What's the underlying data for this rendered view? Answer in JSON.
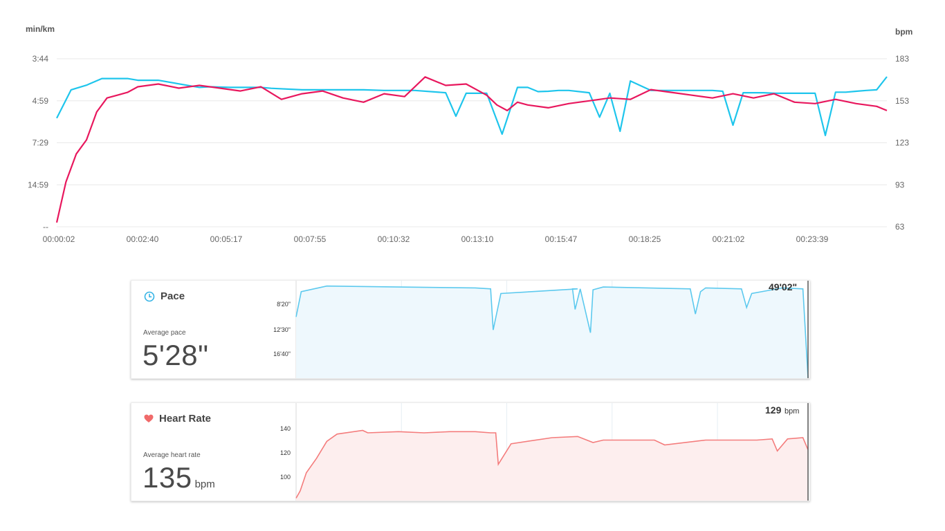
{
  "chart_data": [
    {
      "type": "line",
      "y_left_label": "min/km",
      "y_right_label": "bpm",
      "y_left_ticks": [
        "3:44",
        "4:59",
        "7:29",
        "14:59",
        "--"
      ],
      "y_right_ticks": [
        "183",
        "153",
        "123",
        "93",
        "63"
      ],
      "y_right_range": [
        63,
        183
      ],
      "x_ticks": [
        "00:00:02",
        "00:02:40",
        "00:05:17",
        "00:07:55",
        "00:10:32",
        "00:13:10",
        "00:15:47",
        "00:18:25",
        "00:21:02",
        "00:23:39"
      ],
      "x_range_seconds": [
        2,
        1620
      ],
      "grid": true,
      "series": [
        {
          "key": "pace",
          "color": "#1ec5ec",
          "axis": "left",
          "x": [
            2,
            30,
            60,
            90,
            120,
            140,
            160,
            200,
            280,
            300,
            340,
            400,
            420,
            480,
            540,
            600,
            640,
            700,
            760,
            780,
            800,
            840,
            870,
            900,
            920,
            940,
            960,
            980,
            1000,
            1040,
            1060,
            1080,
            1100,
            1120,
            1160,
            1200,
            1240,
            1260,
            1280,
            1300,
            1320,
            1340,
            1380,
            1400,
            1420,
            1440,
            1460,
            1480,
            1500,
            1520,
            1540,
            1560,
            1580,
            1600,
            1620
          ],
          "values": [
            5.8,
            4.6,
            4.45,
            4.25,
            4.25,
            4.25,
            4.3,
            4.3,
            4.52,
            4.5,
            4.52,
            4.52,
            4.55,
            4.6,
            4.6,
            4.6,
            4.62,
            4.62,
            4.7,
            5.7,
            4.72,
            4.72,
            6.8,
            4.52,
            4.52,
            4.66,
            4.65,
            4.62,
            4.62,
            4.7,
            5.75,
            4.72,
            6.6,
            4.32,
            4.62,
            4.62,
            4.62,
            4.62,
            4.62,
            4.65,
            6.2,
            4.7,
            4.7,
            4.72,
            4.72,
            4.72,
            4.72,
            4.72,
            6.9,
            4.68,
            4.68,
            4.65,
            4.62,
            4.6,
            4.2
          ]
        },
        {
          "key": "heart_rate",
          "color": "#e8175d",
          "axis": "right",
          "x": [
            2,
            20,
            40,
            60,
            80,
            100,
            120,
            140,
            160,
            200,
            240,
            280,
            320,
            360,
            400,
            440,
            480,
            520,
            560,
            600,
            640,
            680,
            720,
            760,
            800,
            840,
            860,
            880,
            900,
            920,
            960,
            1000,
            1040,
            1080,
            1120,
            1160,
            1200,
            1240,
            1280,
            1320,
            1360,
            1400,
            1440,
            1480,
            1520,
            1560,
            1600,
            1620
          ],
          "values": [
            66,
            95,
            115,
            125,
            145,
            155,
            157,
            159,
            163,
            165,
            162,
            164,
            162,
            160,
            163,
            154,
            158,
            160,
            155,
            152,
            158,
            156,
            170,
            164,
            165,
            157,
            150,
            146,
            152,
            150,
            148,
            151,
            153,
            155,
            154,
            161,
            159,
            157,
            155,
            158,
            155,
            158,
            152,
            151,
            154,
            151,
            149,
            146
          ]
        }
      ]
    },
    {
      "type": "area",
      "title": "Pace",
      "summary_label": "Average pace",
      "summary_value": "5'28\"",
      "corner_label": "49'02\"",
      "y_ticks": [
        "8'20\"",
        "12'30\"",
        "16'40\""
      ],
      "color": "#5cc9ee",
      "fill": "#eef8fd",
      "x": [
        0,
        0.01,
        0.06,
        0.2,
        0.35,
        0.38,
        0.385,
        0.4,
        0.55,
        0.54,
        0.545,
        0.555,
        0.575,
        0.58,
        0.6,
        0.77,
        0.78,
        0.79,
        0.8,
        0.87,
        0.88,
        0.89,
        0.95,
        0.99,
        1.0
      ],
      "values": [
        0.35,
        0.08,
        0.02,
        0.03,
        0.04,
        0.05,
        0.49,
        0.1,
        0.05,
        0.05,
        0.27,
        0.05,
        0.52,
        0.06,
        0.03,
        0.05,
        0.32,
        0.08,
        0.04,
        0.05,
        0.25,
        0.1,
        0.04,
        0.05,
        1.0
      ]
    },
    {
      "type": "area",
      "title": "Heart Rate",
      "summary_label": "Average heart rate",
      "summary_value": "135",
      "summary_unit": "bpm",
      "corner_value": "129",
      "corner_unit": "bpm",
      "y_ticks": [
        "140",
        "120",
        "100"
      ],
      "color": "#f47c7c",
      "fill": "#fdeeee",
      "x": [
        0,
        0.008,
        0.02,
        0.04,
        0.06,
        0.08,
        0.13,
        0.14,
        0.2,
        0.25,
        0.3,
        0.35,
        0.38,
        0.39,
        0.395,
        0.42,
        0.5,
        0.55,
        0.58,
        0.6,
        0.7,
        0.72,
        0.8,
        0.9,
        0.93,
        0.94,
        0.96,
        0.99,
        1.0
      ],
      "values": [
        89,
        95,
        110,
        122,
        136,
        142,
        145,
        143,
        144,
        143,
        144,
        144,
        143,
        143,
        117,
        134,
        139,
        140,
        135,
        137,
        137,
        133,
        137,
        137,
        138,
        128,
        138,
        139,
        129
      ]
    }
  ],
  "pace_panel": {
    "title": "Pace",
    "icon": "clock-icon",
    "summary_label": "Average pace",
    "summary_value": "5'28\"",
    "corner_label": "49'02\""
  },
  "hr_panel": {
    "title": "Heart Rate",
    "icon": "heart-icon",
    "summary_label": "Average heart rate",
    "summary_value": "135",
    "summary_unit": "bpm",
    "corner_value": "129",
    "corner_unit": "bpm"
  }
}
